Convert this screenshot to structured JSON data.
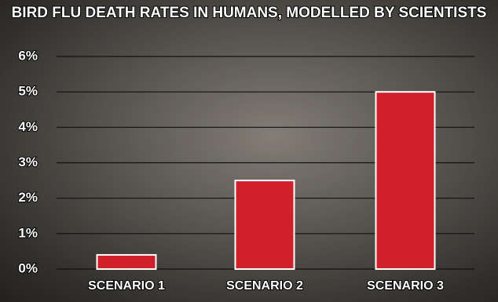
{
  "chart_data": {
    "type": "bar",
    "title": "BIRD FLU DEATH RATES IN HUMANS, MODELLED BY SCIENTISTS",
    "categories": [
      "SCENARIO 1",
      "SCENARIO 2",
      "SCENARIO 3"
    ],
    "values": [
      0.4,
      2.5,
      5
    ],
    "color": "#d0202a",
    "ylim": [
      0,
      6
    ],
    "yticks": [
      {
        "value": 0,
        "label": "0%"
      },
      {
        "value": 1,
        "label": "1%"
      },
      {
        "value": 2,
        "label": "2%"
      },
      {
        "value": 3,
        "label": "3%"
      },
      {
        "value": 4,
        "label": "4%"
      },
      {
        "value": 5,
        "label": "5%"
      },
      {
        "value": 6,
        "label": "6%"
      }
    ],
    "grid": true
  }
}
